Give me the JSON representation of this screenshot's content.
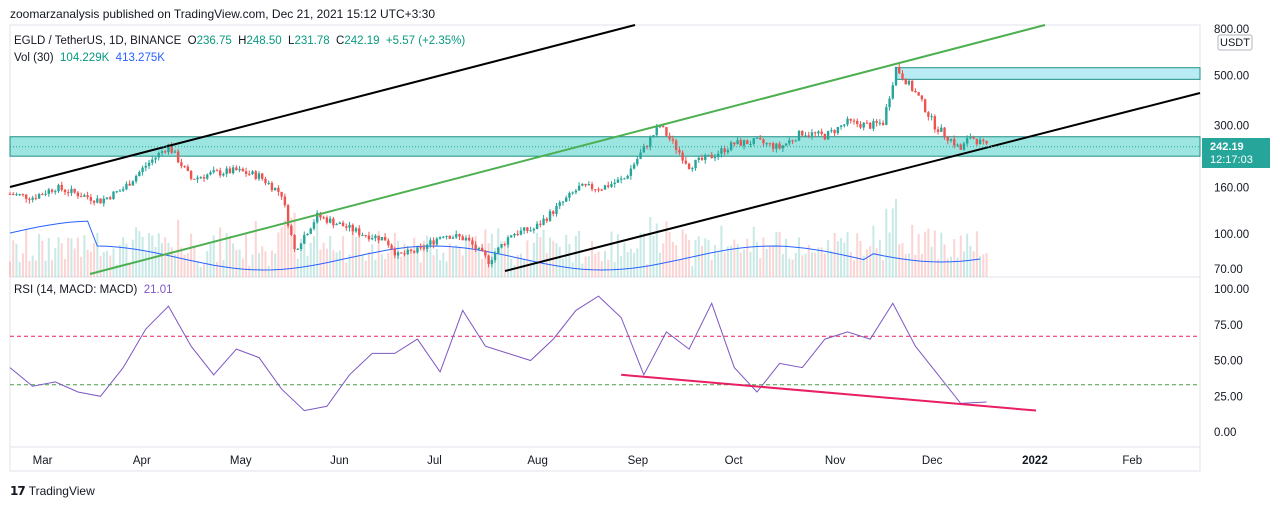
{
  "publisher": "zoomarzanalysis published on TradingView.com, Dec 21, 2021 15:12 UTC+3:30",
  "footer": {
    "logo_text": "TradingView"
  },
  "colors": {
    "up": "#26a69a",
    "down": "#ef5350",
    "rsi": "#7e57c2",
    "channel_green": "#4caf50",
    "trend_black": "#000000",
    "zone_fill": "#4dd0c8",
    "supply_fill": "#7fdbec",
    "rsi_div": "#e91e63",
    "vol_ma": "#2962ff",
    "price_tag": "#26a69a"
  },
  "chart_data": [
    {
      "type": "candlestick",
      "title": "EGLD / TetherUS, 1D, BINANCE",
      "ohlc_label": {
        "o_key": "O",
        "o": "236.75",
        "h_key": "H",
        "h": "248.50",
        "l_key": "L",
        "l": "231.78",
        "c_key": "C",
        "c": "242.19",
        "change": "+5.57 (+2.35%)"
      },
      "y_scale": "log",
      "ylim": [
        70,
        800
      ],
      "y_ticks": [
        "800.00",
        "500.00",
        "300.00",
        "160.00",
        "100.00",
        "70.00"
      ],
      "currency": "USDT",
      "last_price": "242.19",
      "countdown": "12:17:03",
      "x_labels": [
        "Mar",
        "Apr",
        "May",
        "Jun",
        "Jul",
        "Aug",
        "Sep",
        "Oct",
        "Nov",
        "Dec",
        "2022",
        "Feb"
      ],
      "price_path": [
        [
          "2021-02-22",
          150
        ],
        [
          "2021-03-01",
          145
        ],
        [
          "2021-03-08",
          160
        ],
        [
          "2021-03-15",
          150
        ],
        [
          "2021-03-22",
          140
        ],
        [
          "2021-03-29",
          158
        ],
        [
          "2021-04-05",
          200
        ],
        [
          "2021-04-12",
          245
        ],
        [
          "2021-04-19",
          175
        ],
        [
          "2021-04-26",
          185
        ],
        [
          "2021-05-03",
          190
        ],
        [
          "2021-05-10",
          180
        ],
        [
          "2021-05-17",
          150
        ],
        [
          "2021-05-21",
          85
        ],
        [
          "2021-05-28",
          120
        ],
        [
          "2021-06-04",
          110
        ],
        [
          "2021-06-11",
          100
        ],
        [
          "2021-06-18",
          95
        ],
        [
          "2021-06-22",
          80
        ],
        [
          "2021-06-29",
          85
        ],
        [
          "2021-07-06",
          100
        ],
        [
          "2021-07-13",
          95
        ],
        [
          "2021-07-20",
          76
        ],
        [
          "2021-07-27",
          100
        ],
        [
          "2021-08-03",
          105
        ],
        [
          "2021-08-10",
          130
        ],
        [
          "2021-08-17",
          160
        ],
        [
          "2021-08-24",
          160
        ],
        [
          "2021-08-31",
          175
        ],
        [
          "2021-09-07",
          250
        ],
        [
          "2021-09-11",
          300
        ],
        [
          "2021-09-20",
          200
        ],
        [
          "2021-09-27",
          220
        ],
        [
          "2021-10-04",
          250
        ],
        [
          "2021-10-11",
          255
        ],
        [
          "2021-10-18",
          240
        ],
        [
          "2021-10-25",
          280
        ],
        [
          "2021-11-01",
          270
        ],
        [
          "2021-11-08",
          310
        ],
        [
          "2021-11-15",
          300
        ],
        [
          "2021-11-19",
          310
        ],
        [
          "2021-11-23",
          540
        ],
        [
          "2021-11-30",
          400
        ],
        [
          "2021-12-05",
          300
        ],
        [
          "2021-12-10",
          260
        ],
        [
          "2021-12-13",
          235
        ],
        [
          "2021-12-16",
          270
        ],
        [
          "2021-12-21",
          242
        ]
      ],
      "zones": [
        {
          "name": "support-zone",
          "from": 220,
          "to": 268
        },
        {
          "name": "supply-zone",
          "from": 480,
          "to": 540
        }
      ],
      "volume": {
        "label": "Vol (30)",
        "value": "104.229K",
        "ma": "413.275K"
      }
    },
    {
      "type": "line",
      "title": "RSI (14, MACD: MACD)",
      "value": "21.01",
      "ylim": [
        0,
        100
      ],
      "y_ticks": [
        "100.00",
        "75.00",
        "50.00",
        "25.00",
        "0.00"
      ],
      "levels": [
        67,
        33
      ],
      "series": [
        {
          "values": [
            [
              "2021-02-22",
              45
            ],
            [
              "2021-03-01",
              32
            ],
            [
              "2021-03-08",
              35
            ],
            [
              "2021-03-15",
              28
            ],
            [
              "2021-03-22",
              25
            ],
            [
              "2021-03-29",
              45
            ],
            [
              "2021-04-05",
              72
            ],
            [
              "2021-04-12",
              88
            ],
            [
              "2021-04-19",
              60
            ],
            [
              "2021-04-26",
              40
            ],
            [
              "2021-05-03",
              58
            ],
            [
              "2021-05-10",
              52
            ],
            [
              "2021-05-17",
              30
            ],
            [
              "2021-05-24",
              15
            ],
            [
              "2021-05-31",
              18
            ],
            [
              "2021-06-07",
              40
            ],
            [
              "2021-06-14",
              55
            ],
            [
              "2021-06-21",
              55
            ],
            [
              "2021-06-28",
              65
            ],
            [
              "2021-07-05",
              42
            ],
            [
              "2021-07-12",
              85
            ],
            [
              "2021-07-19",
              60
            ],
            [
              "2021-07-26",
              55
            ],
            [
              "2021-08-02",
              50
            ],
            [
              "2021-08-09",
              65
            ],
            [
              "2021-08-16",
              85
            ],
            [
              "2021-08-23",
              95
            ],
            [
              "2021-08-30",
              80
            ],
            [
              "2021-09-06",
              40
            ],
            [
              "2021-09-13",
              70
            ],
            [
              "2021-09-20",
              58
            ],
            [
              "2021-09-27",
              90
            ],
            [
              "2021-10-04",
              45
            ],
            [
              "2021-10-11",
              28
            ],
            [
              "2021-10-18",
              48
            ],
            [
              "2021-10-25",
              45
            ],
            [
              "2021-11-01",
              65
            ],
            [
              "2021-11-08",
              70
            ],
            [
              "2021-11-15",
              65
            ],
            [
              "2021-11-22",
              90
            ],
            [
              "2021-11-29",
              60
            ],
            [
              "2021-12-06",
              40
            ],
            [
              "2021-12-13",
              20
            ],
            [
              "2021-12-21",
              21
            ]
          ]
        }
      ]
    }
  ]
}
